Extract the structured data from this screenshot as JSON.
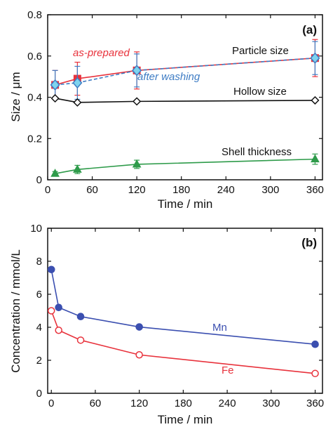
{
  "chart_data": [
    {
      "type": "line",
      "panel_label": "(a)",
      "xlabel": "Time / min",
      "ylabel": "Size / μm",
      "xlim": [
        0,
        370
      ],
      "ylim": [
        0,
        0.8
      ],
      "xticks": [
        "0",
        "60",
        "120",
        "180",
        "240",
        "300",
        "360"
      ],
      "yticks": [
        "0",
        "0.2",
        "0.4",
        "0.6",
        "0.8"
      ],
      "grid": false,
      "series": [
        {
          "name": "as-prepared",
          "color": "#e8323c",
          "marker": "square",
          "line": "solid",
          "points": [
            {
              "x": 10,
              "y": 0.46,
              "err": 0.07
            },
            {
              "x": 40,
              "y": 0.49,
              "err": 0.08
            },
            {
              "x": 120,
              "y": 0.53,
              "err": 0.09
            },
            {
              "x": 360,
              "y": 0.59,
              "err": 0.09
            }
          ]
        },
        {
          "name": "after washing",
          "color": "#3e7cc4",
          "marker": "diamond",
          "line": "dashed",
          "points": [
            {
              "x": 10,
              "y": 0.46,
              "err": 0.07
            },
            {
              "x": 40,
              "y": 0.47,
              "err": 0.08
            },
            {
              "x": 120,
              "y": 0.53,
              "err": 0.08
            },
            {
              "x": 360,
              "y": 0.59,
              "err": 0.08
            }
          ]
        },
        {
          "name": "Hollow size",
          "color": "#111111",
          "marker": "diamond-open",
          "line": "solid",
          "points": [
            {
              "x": 10,
              "y": 0.395
            },
            {
              "x": 40,
              "y": 0.375
            },
            {
              "x": 120,
              "y": 0.38
            },
            {
              "x": 360,
              "y": 0.385
            }
          ]
        },
        {
          "name": "Shell thickness",
          "color": "#2e9b4a",
          "marker": "triangle",
          "line": "solid",
          "points": [
            {
              "x": 10,
              "y": 0.03,
              "err": 0.01
            },
            {
              "x": 40,
              "y": 0.05,
              "err": 0.02
            },
            {
              "x": 120,
              "y": 0.075,
              "err": 0.02
            },
            {
              "x": 360,
              "y": 0.1,
              "err": 0.025
            }
          ]
        }
      ],
      "annotations": [
        {
          "text": "as-prepared",
          "color": "#e8323c",
          "italic": true
        },
        {
          "text": "after washing",
          "color": "#3e7cc4",
          "italic": true
        },
        {
          "text": "Particle size",
          "color": "#111111",
          "italic": false
        },
        {
          "text": "Hollow size",
          "color": "#111111",
          "italic": false
        },
        {
          "text": "Shell thickness",
          "color": "#111111",
          "italic": false
        }
      ]
    },
    {
      "type": "line",
      "panel_label": "(b)",
      "xlabel": "Time / min",
      "ylabel": "Concentration / mmol/L",
      "xlim": [
        -5,
        370
      ],
      "ylim": [
        0,
        10
      ],
      "xticks": [
        "0",
        "60",
        "120",
        "180",
        "240",
        "300",
        "360"
      ],
      "yticks": [
        "0",
        "2",
        "4",
        "6",
        "8",
        "10"
      ],
      "grid": false,
      "series": [
        {
          "name": "Mn",
          "color": "#3b4fb0",
          "marker": "circle",
          "line": "solid",
          "points": [
            {
              "x": 0,
              "y": 7.5
            },
            {
              "x": 10,
              "y": 5.2
            },
            {
              "x": 40,
              "y": 4.65
            },
            {
              "x": 120,
              "y": 4.02
            },
            {
              "x": 360,
              "y": 2.97
            }
          ]
        },
        {
          "name": "Fe",
          "color": "#e8323c",
          "marker": "circle-open",
          "line": "solid",
          "points": [
            {
              "x": 0,
              "y": 5.0
            },
            {
              "x": 10,
              "y": 3.82
            },
            {
              "x": 40,
              "y": 3.22
            },
            {
              "x": 120,
              "y": 2.33
            },
            {
              "x": 360,
              "y": 1.2
            }
          ]
        }
      ],
      "annotations": [
        {
          "text": "Mn",
          "color": "#3b4fb0",
          "italic": false
        },
        {
          "text": "Fe",
          "color": "#e8323c",
          "italic": false
        }
      ]
    }
  ]
}
